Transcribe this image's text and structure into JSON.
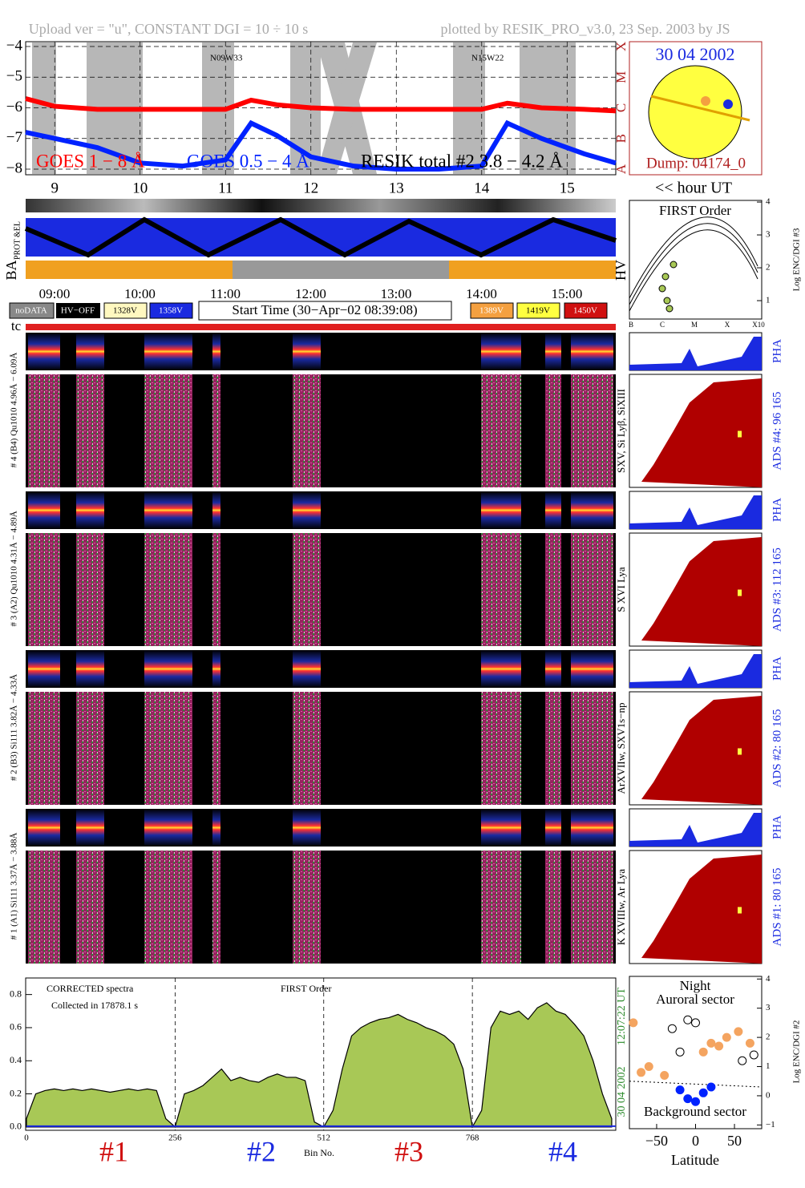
{
  "header": {
    "left": "Upload ver = \"u\", CONSTANT  DGI =  10 ÷  10 s",
    "right": "plotted by RESIK_PRO_v3.0, 23 Sep. 2003 by JS"
  },
  "solar_disk": {
    "date": "30 04 2002",
    "dump": "Dump: 04174_0"
  },
  "status": {
    "prot_el": "PROT &EL",
    "ba": "BA",
    "hv": "HV",
    "tc": "tc",
    "time_labels": [
      "09:00",
      "10:00",
      "11:00",
      "12:00",
      "13:00",
      "14:00",
      "15:00"
    ],
    "legend_left": [
      "noDATA",
      "HV−OFF",
      "1328V",
      "1358V"
    ],
    "start_time": "Start Time (30−Apr−02 08:39:08)",
    "legend_right": [
      "1389V",
      "1419V",
      "1450V"
    ]
  },
  "first_order_panel": {
    "title": "FIRST Order",
    "ylabel": "Log ENC/DGI #3",
    "ylim": [
      0.44,
      4.05
    ],
    "yticks": [
      1,
      2,
      3,
      4
    ],
    "xlabels": [
      "B",
      "C",
      "M",
      "X",
      "X10"
    ]
  },
  "spectrograms": [
    {
      "label": "# 4 (B4) Qu1010 4.96Å − 6.09Å",
      "lines": "SXV, Si Lyβ, SiXIII",
      "ads": "ADS #4:   96 165",
      "pha": "PHA"
    },
    {
      "label": "# 3 (A2) Qu1010  4.31Å − 4.89Å",
      "lines": "S XVI Lya",
      "ads": "ADS #3:  112 165",
      "pha": "PHA"
    },
    {
      "label": "# 2 (B3) Si111  3.82Å − 4.33Å",
      "lines": "ArXVIIw, SXV1s−np",
      "ads": "ADS #2:   80 165",
      "pha": "PHA"
    },
    {
      "label": "# 1 (A1) Si111  3.37Å − 3.88Å",
      "lines": "K XVIIIw, Ar Lya",
      "ads": "ADS #1:   80 165",
      "pha": "PHA"
    }
  ],
  "chart_data": [
    {
      "type": "line",
      "xlabel": "<< hour UT",
      "x": [
        8.66,
        9,
        9.5,
        10,
        10.5,
        11,
        11.3,
        11.6,
        12,
        12.5,
        13,
        13.5,
        14,
        14.3,
        14.7,
        15.2,
        15.57
      ],
      "xlim": [
        8.66,
        15.57
      ],
      "xticks": [
        9,
        10,
        11,
        12,
        13,
        14,
        15
      ],
      "ylim": [
        -8.15,
        -3.85
      ],
      "yticks": [
        {
          "value": -8,
          "label": "−8"
        },
        {
          "value": -7,
          "label": "−7"
        },
        {
          "value": -6,
          "label": "−6"
        },
        {
          "value": -5,
          "label": "−5"
        },
        {
          "value": -4,
          "label": "−4"
        }
      ],
      "class_ticks": [
        {
          "value": -4,
          "label": "X"
        },
        {
          "value": -5,
          "label": "M"
        },
        {
          "value": -6,
          "label": "C"
        },
        {
          "value": -7,
          "label": "B"
        },
        {
          "value": -8,
          "label": "A"
        }
      ],
      "grid": true,
      "series": [
        {
          "name": "GOES 1 − 8 Å",
          "color": "#ff0000",
          "values": [
            -5.7,
            -5.95,
            -6.05,
            -6.05,
            -6.05,
            -6.05,
            -5.75,
            -5.9,
            -6.0,
            -6.05,
            -6.05,
            -6.05,
            -6.05,
            -5.85,
            -6.0,
            -6.05,
            -6.1
          ]
        },
        {
          "name": "GOES 0.5 − 4 Å",
          "color": "#0022ff",
          "values": [
            -6.8,
            -7.0,
            -7.3,
            -7.8,
            -7.9,
            -7.7,
            -6.5,
            -6.9,
            -7.6,
            -7.9,
            -8.0,
            -8.0,
            -7.9,
            -6.5,
            -7.0,
            -7.5,
            -7.8
          ]
        }
      ],
      "annotations": [
        "RESIK total #2  3.8 − 4.2 Å",
        "N09W33",
        "N15W22"
      ]
    },
    {
      "type": "area",
      "color": "#a8c856",
      "xlabel": "Bin No.",
      "annotations": [
        "CORRECTED spectra",
        "Collected in 17878.1 s",
        "FIRST Order"
      ],
      "section_labels": [
        "#1",
        "#2",
        "#3",
        "#4"
      ],
      "date": "30 04 2002",
      "time": "12:07:22 UT",
      "x": [
        0,
        16,
        32,
        48,
        64,
        80,
        96,
        112,
        128,
        144,
        160,
        176,
        192,
        208,
        224,
        240,
        256,
        272,
        288,
        304,
        320,
        336,
        352,
        368,
        384,
        400,
        416,
        432,
        448,
        464,
        480,
        496,
        512,
        528,
        544,
        560,
        576,
        592,
        608,
        624,
        640,
        656,
        672,
        688,
        704,
        720,
        736,
        752,
        768,
        784,
        800,
        816,
        832,
        848,
        864,
        880,
        896,
        912,
        928,
        944,
        960,
        976,
        992,
        1008
      ],
      "values": [
        0.05,
        0.2,
        0.22,
        0.23,
        0.22,
        0.23,
        0.22,
        0.23,
        0.22,
        0.21,
        0.22,
        0.23,
        0.22,
        0.23,
        0.22,
        0.05,
        0.0,
        0.2,
        0.22,
        0.25,
        0.3,
        0.35,
        0.28,
        0.3,
        0.28,
        0.27,
        0.3,
        0.32,
        0.3,
        0.3,
        0.28,
        0.03,
        0.0,
        0.1,
        0.35,
        0.55,
        0.6,
        0.63,
        0.65,
        0.66,
        0.68,
        0.65,
        0.63,
        0.6,
        0.58,
        0.55,
        0.5,
        0.35,
        0.0,
        0.1,
        0.6,
        0.7,
        0.68,
        0.7,
        0.65,
        0.72,
        0.75,
        0.7,
        0.68,
        0.62,
        0.55,
        0.4,
        0.2,
        0.05
      ],
      "xlim": [
        0,
        1015
      ],
      "xticks": [
        0,
        256,
        512,
        768
      ],
      "ylim": [
        -0.02,
        0.9
      ],
      "yticks": [
        {
          "value": 0,
          "label": "0.0"
        },
        0.2,
        0.4,
        0.6,
        0.8
      ]
    },
    {
      "type": "scatter",
      "title": "Night",
      "annotations": [
        "Auroral sector",
        "Background sector"
      ],
      "xlabel": "Latitude",
      "ylabel": "Log ENC/DGI #2",
      "xlim": [
        -85,
        85
      ],
      "xticks": [
        {
          "value": -50,
          "label": "−50"
        },
        0,
        50
      ],
      "ylim": [
        -1.1,
        4.2
      ],
      "yticks": [
        {
          "value": -1,
          "label": "−1"
        },
        0,
        1,
        2,
        3,
        4
      ],
      "x": [
        -80,
        -70,
        -60,
        -40,
        10,
        20,
        30,
        40,
        55,
        70,
        -30,
        -10,
        0,
        -20,
        60,
        75,
        -20,
        -10,
        0,
        10,
        20
      ],
      "values": [
        2.5,
        0.8,
        1.0,
        0.7,
        1.5,
        1.8,
        1.7,
        2.0,
        2.2,
        1.8,
        2.3,
        2.6,
        2.5,
        1.5,
        1.2,
        1.4,
        0.2,
        -0.1,
        -0.2,
        0.1,
        0.3
      ],
      "point_colors": [
        "#f4a460",
        "#f4a460",
        "#f4a460",
        "#f4a460",
        "#f4a460",
        "#f4a460",
        "#f4a460",
        "#f4a460",
        "#f4a460",
        "#f4a460",
        "#000000",
        "#000000",
        "#000000",
        "#000000",
        "#000000",
        "#000000",
        "#0022ff",
        "#0022ff",
        "#0022ff",
        "#0022ff",
        "#0022ff"
      ]
    }
  ]
}
